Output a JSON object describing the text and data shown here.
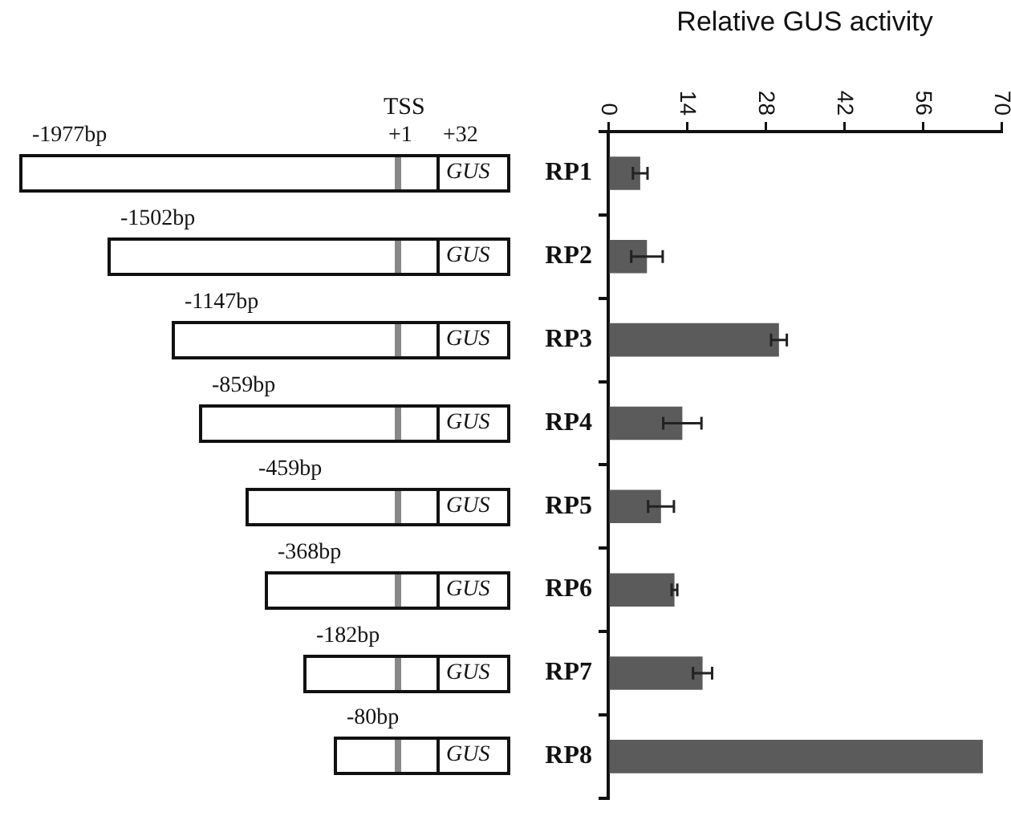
{
  "chart_data": {
    "type": "bar",
    "orientation": "horizontal",
    "xlabel": "Relative GUS activity",
    "categories": [
      "RP1",
      "RP2",
      "RP3",
      "RP4",
      "RP5",
      "RP6",
      "RP7",
      "RP8"
    ],
    "values": [
      5.7,
      6.9,
      30.4,
      13.2,
      9.4,
      11.8,
      16.8,
      66.7
    ],
    "errors": [
      1.3,
      2.8,
      1.4,
      3.4,
      2.3,
      0.5,
      1.7,
      null
    ],
    "color": "#5b5b5b",
    "xlim": [
      0,
      70
    ],
    "xticks": [
      0,
      14,
      28,
      42,
      56,
      70
    ],
    "grid": false,
    "legend": false,
    "annotations": [
      "TSS",
      "+1",
      "+32",
      "GUS",
      "-1977bp",
      "-1502bp",
      "-1147bp",
      "-859bp",
      "-459bp",
      "-368bp",
      "-182bp",
      "-80bp"
    ]
  }
}
